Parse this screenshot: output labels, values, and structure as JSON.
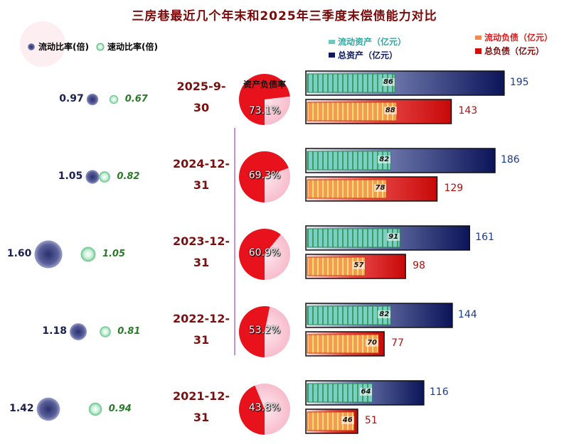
{
  "title": "三房巷最近几个年末和2025年三季度末偿债能力对比",
  "legend": {
    "current_ratio": "流动比率(倍)",
    "quick_ratio": "速动比率(倍)",
    "current_assets": "流动资产（亿元）",
    "total_assets": "总资产（亿元）",
    "current_liabilities": "流动负债（亿元）",
    "total_liabilities": "总负债（亿元）"
  },
  "pie_caption": "资产负债率",
  "colors": {
    "current_assets": "#6ec8c0",
    "total_assets": "#0d1a5e",
    "current_liabilities": "#f08a50",
    "total_liabilities": "#d40c0c",
    "current_ratio": "#3a4080",
    "quick_ratio": "#8fd8a8",
    "pie_red": "#e8121c",
    "pie_pink": "#f8c0d0"
  },
  "chart_data": {
    "type": "bar",
    "categories": [
      "2025-9-30",
      "2024-12-31",
      "2023-12-31",
      "2022-12-31",
      "2021-12-31"
    ],
    "category_lines": [
      [
        "2025-9-",
        "30"
      ],
      [
        "2024-12-",
        "31"
      ],
      [
        "2023-12-",
        "31"
      ],
      [
        "2022-12-",
        "31"
      ],
      [
        "2021-12-",
        "31"
      ]
    ],
    "series": [
      {
        "name": "流动资产（亿元）",
        "values": [
          86,
          82,
          91,
          82,
          64
        ]
      },
      {
        "name": "总资产（亿元）",
        "values": [
          195,
          186,
          161,
          144,
          116
        ]
      },
      {
        "name": "流动负债（亿元）",
        "values": [
          88,
          78,
          57,
          70,
          46
        ]
      },
      {
        "name": "总负债（亿元）",
        "values": [
          143,
          129,
          98,
          77,
          51
        ]
      },
      {
        "name": "资产负债率",
        "values": [
          73.1,
          69.3,
          60.9,
          53.2,
          43.8
        ],
        "unit": "%"
      },
      {
        "name": "流动比率(倍)",
        "values": [
          0.97,
          1.05,
          1.6,
          1.18,
          1.42
        ]
      },
      {
        "name": "速动比率(倍)",
        "values": [
          0.67,
          0.82,
          1.05,
          0.81,
          0.94
        ]
      }
    ],
    "debt_ratio_labels": [
      "73.1%",
      "69.3%",
      "60.9%",
      "53.2%",
      "43.8%"
    ],
    "current_ratio_labels": [
      "0.97",
      "1.05",
      "1.60",
      "1.18",
      "1.42"
    ],
    "quick_ratio_labels": [
      "0.67",
      "0.82",
      "1.05",
      "0.81",
      "0.94"
    ],
    "grid": false
  }
}
